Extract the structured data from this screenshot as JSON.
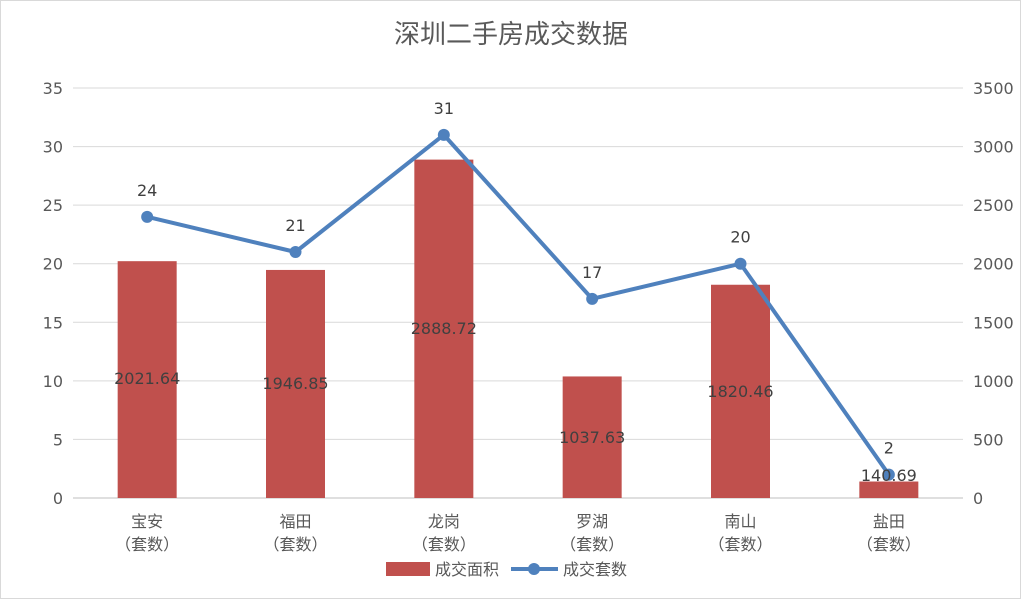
{
  "chart_data": {
    "type": "bar",
    "title": "深圳二手房成交数据",
    "categories": [
      "宝安\n（套数）",
      "福田\n（套数）",
      "龙岗\n（套数）",
      "罗湖\n（套数）",
      "南山\n（套数）",
      "盐田\n（套数）"
    ],
    "series": [
      {
        "name": "成交面积",
        "kind": "bar",
        "axis": "left",
        "color": "#c0504d",
        "values": [
          2021.64,
          1946.85,
          2888.72,
          1037.63,
          1820.46,
          140.69
        ],
        "labels": [
          "2021.64",
          "1946.85",
          "2888.72",
          "1037.63",
          "1820.46",
          "140.69"
        ]
      },
      {
        "name": "成交套数",
        "kind": "line",
        "axis": "right",
        "color": "#4f81bd",
        "values": [
          24,
          21,
          31,
          17,
          20,
          2
        ],
        "labels": [
          "24",
          "21",
          "31",
          "17",
          "20",
          "2"
        ]
      }
    ],
    "left_axis": {
      "ylim": [
        0,
        35
      ],
      "ticks": [
        "0",
        "5",
        "10",
        "15",
        "20",
        "25",
        "30",
        "35"
      ]
    },
    "right_axis": {
      "ylim": [
        0,
        3500
      ],
      "ticks": [
        "0",
        "500",
        "1000",
        "1500",
        "2000",
        "2500",
        "3000",
        "3500"
      ]
    },
    "grid": true,
    "legend_position": "bottom",
    "notes": "Bars are drawn against the left axis scaled 1:100 (bar value / 100 on left scale); line points use the right axis scaled ×100 as rendered in the source."
  }
}
